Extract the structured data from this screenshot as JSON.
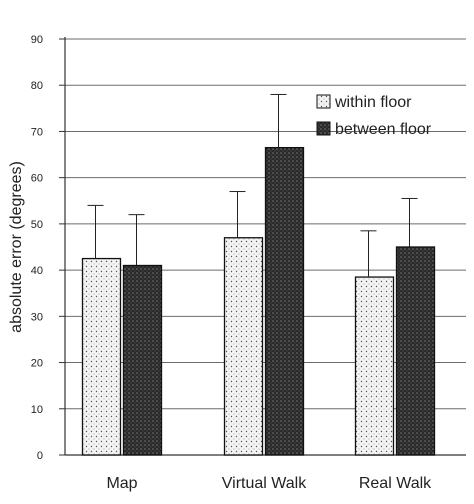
{
  "chart_data": {
    "type": "bar",
    "title": "",
    "xlabel": "",
    "ylabel": "absolute error (degrees)",
    "ylim": [
      0,
      90
    ],
    "yticks": [
      0,
      10,
      20,
      30,
      40,
      50,
      60,
      70,
      80,
      90
    ],
    "grid": true,
    "legend_position": "top-right",
    "categories": [
      "Map",
      "Virtual Walk",
      "Real Walk"
    ],
    "series": [
      {
        "name": "within floor",
        "values": [
          42.5,
          47,
          38.5
        ],
        "error": [
          11.5,
          10,
          10
        ],
        "pattern": "dotted"
      },
      {
        "name": "between floor",
        "values": [
          41,
          66.5,
          45
        ],
        "error": [
          11,
          11.5,
          10.5
        ],
        "pattern": "dark-hatched"
      }
    ]
  }
}
